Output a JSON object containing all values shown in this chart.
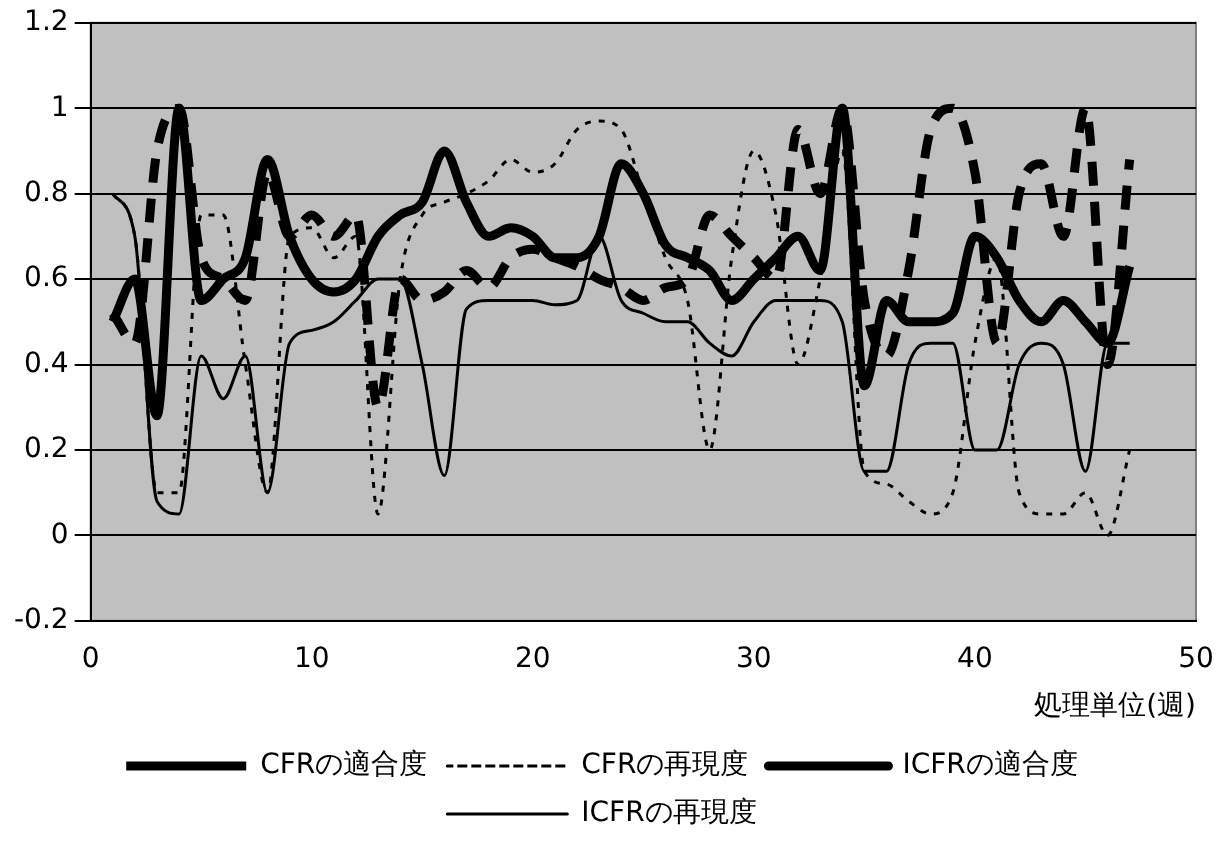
{
  "chart_data": {
    "type": "line",
    "xlabel": "処理単位(週)",
    "x": [
      1,
      2,
      3,
      4,
      5,
      6,
      7,
      8,
      9,
      10,
      11,
      12,
      13,
      14,
      15,
      16,
      17,
      18,
      19,
      20,
      21,
      22,
      23,
      24,
      25,
      26,
      27,
      28,
      29,
      30,
      31,
      32,
      33,
      34,
      35,
      36,
      37,
      38,
      39,
      40,
      41,
      42,
      43,
      44,
      45,
      46,
      47
    ],
    "xlim": [
      0,
      50
    ],
    "xticks": [
      0,
      10,
      20,
      30,
      40,
      50
    ],
    "ylim": [
      -0.2,
      1.2
    ],
    "yticks": [
      -0.2,
      0,
      0.2,
      0.4,
      0.6,
      0.8,
      1,
      1.2
    ],
    "grid": "y",
    "legend": "bottom",
    "marker": "none",
    "series": [
      {
        "name": "CFRの適合度",
        "color": "#000000",
        "line_style": "dashed",
        "values": [
          0.52,
          0.45,
          0.9,
          1.0,
          0.65,
          0.6,
          0.55,
          0.85,
          0.7,
          0.75,
          0.7,
          0.75,
          0.3,
          0.6,
          0.55,
          0.57,
          0.62,
          0.58,
          0.65,
          0.67,
          0.65,
          0.63,
          0.6,
          0.58,
          0.55,
          0.58,
          0.6,
          0.75,
          0.7,
          0.65,
          0.6,
          0.95,
          0.8,
          1.0,
          0.55,
          0.42,
          0.62,
          0.95,
          1.0,
          0.85,
          0.45,
          0.8,
          0.87,
          0.7,
          1.0,
          0.4,
          0.88
        ]
      },
      {
        "name": "CFRの再現度",
        "color": "#000000",
        "line_style": "dotted",
        "values": [
          0.8,
          0.7,
          0.1,
          0.1,
          0.75,
          0.75,
          0.4,
          0.1,
          0.7,
          0.72,
          0.65,
          0.7,
          0.05,
          0.6,
          0.75,
          0.78,
          0.8,
          0.83,
          0.88,
          0.85,
          0.87,
          0.95,
          0.97,
          0.95,
          0.8,
          0.65,
          0.55,
          0.2,
          0.65,
          0.9,
          0.75,
          0.4,
          0.6,
          0.9,
          0.15,
          0.12,
          0.08,
          0.05,
          0.1,
          0.45,
          0.65,
          0.1,
          0.05,
          0.05,
          0.1,
          0.0,
          0.2
        ]
      },
      {
        "name": "ICFRの適合度",
        "color": "#000000",
        "line_style": "solid",
        "values": [
          0.5,
          0.6,
          0.28,
          1.0,
          0.55,
          0.6,
          0.65,
          0.88,
          0.7,
          0.6,
          0.57,
          0.6,
          0.7,
          0.75,
          0.78,
          0.9,
          0.78,
          0.7,
          0.72,
          0.7,
          0.65,
          0.65,
          0.7,
          0.87,
          0.8,
          0.68,
          0.65,
          0.62,
          0.55,
          0.6,
          0.65,
          0.7,
          0.62,
          1.0,
          0.35,
          0.55,
          0.5,
          0.5,
          0.52,
          0.7,
          0.65,
          0.55,
          0.5,
          0.55,
          0.5,
          0.45,
          0.63
        ]
      },
      {
        "name": "ICFRの再現度",
        "color": "#000000",
        "line_style": "solid",
        "values": [
          0.8,
          0.7,
          0.08,
          0.05,
          0.42,
          0.32,
          0.42,
          0.1,
          0.45,
          0.48,
          0.5,
          0.55,
          0.6,
          0.6,
          0.4,
          0.14,
          0.53,
          0.55,
          0.55,
          0.55,
          0.54,
          0.55,
          0.7,
          0.55,
          0.52,
          0.5,
          0.5,
          0.45,
          0.42,
          0.5,
          0.55,
          0.55,
          0.55,
          0.5,
          0.15,
          0.15,
          0.4,
          0.45,
          0.45,
          0.2,
          0.2,
          0.4,
          0.45,
          0.4,
          0.15,
          0.45,
          0.45
        ]
      }
    ]
  }
}
